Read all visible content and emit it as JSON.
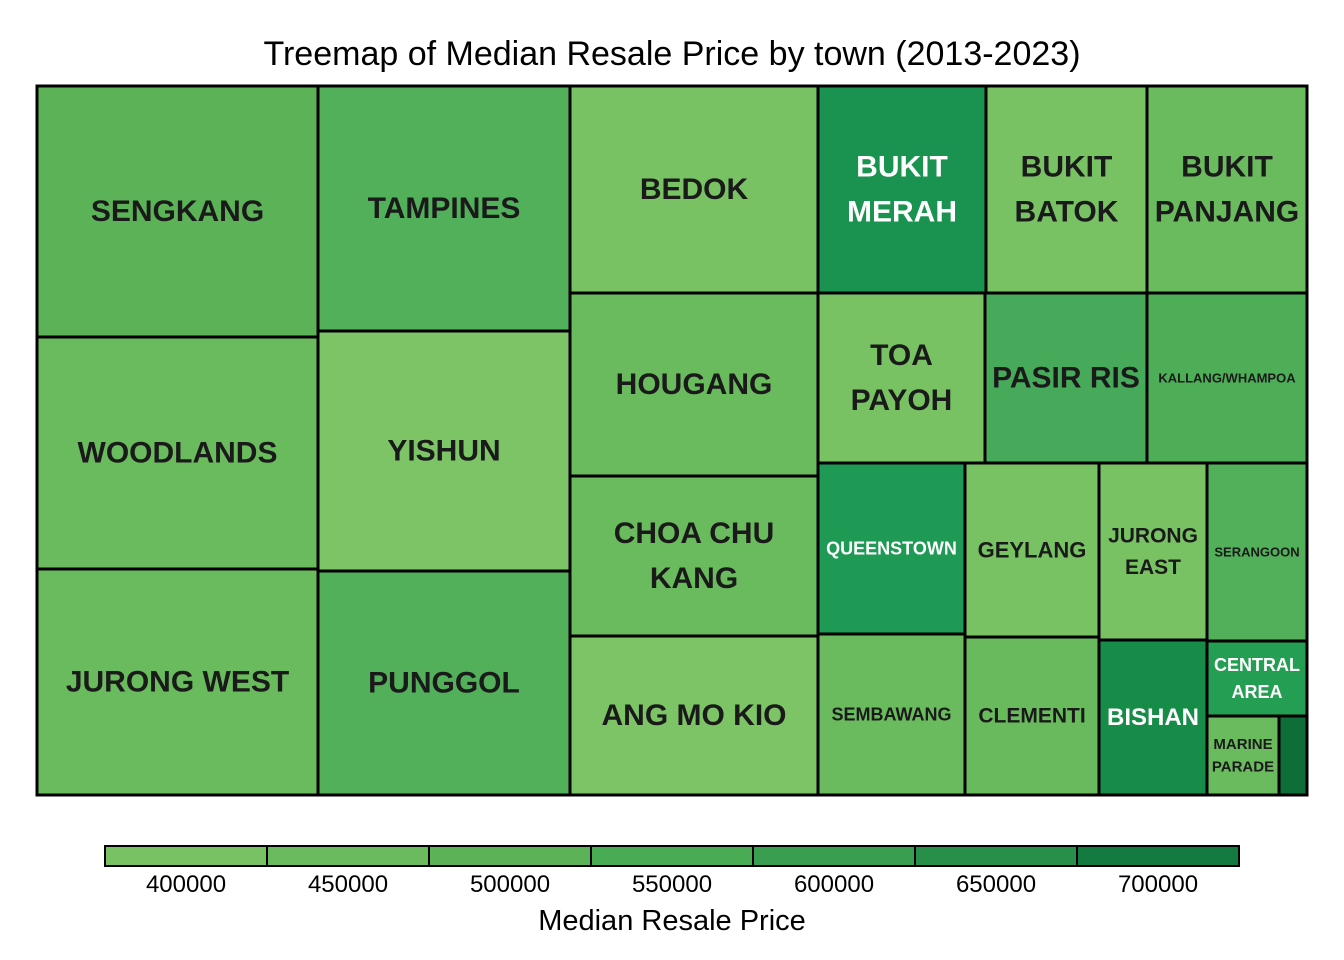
{
  "chart_data": {
    "type": "treemap",
    "title": "Treemap of Median Resale Price by town  (2013-2023)",
    "legend": {
      "title": "Median Resale Price",
      "position": "bottom",
      "ticks": [
        "400000",
        "450000",
        "500000",
        "550000",
        "600000",
        "650000",
        "700000"
      ],
      "colors": [
        "#78c264",
        "#6abb5d",
        "#5cb357",
        "#4aab55",
        "#3a9e50",
        "#278f4a",
        "#137a40"
      ]
    },
    "cells": [
      {
        "label": "SENGKANG",
        "lines": [
          "SENGKANG"
        ],
        "value_rank": 1,
        "median_price": 470000,
        "fill": "#5cb357",
        "text_color": "#1a1a1a"
      },
      {
        "label": "WOODLANDS",
        "lines": [
          "WOODLANDS"
        ],
        "value_rank": 2,
        "median_price": 420000,
        "fill": "#6abb5d",
        "text_color": "#1a1a1a"
      },
      {
        "label": "JURONG WEST",
        "lines": [
          "JURONG WEST"
        ],
        "value_rank": 3,
        "median_price": 420000,
        "fill": "#6abb5d",
        "text_color": "#1a1a1a"
      },
      {
        "label": "TAMPINES",
        "lines": [
          "TAMPINES"
        ],
        "value_rank": 4,
        "median_price": 480000,
        "fill": "#52af5a",
        "text_color": "#1a1a1a"
      },
      {
        "label": "YISHUN",
        "lines": [
          "YISHUN"
        ],
        "value_rank": 5,
        "median_price": 390000,
        "fill": "#7cc466",
        "text_color": "#1a1a1a"
      },
      {
        "label": "PUNGGOL",
        "lines": [
          "PUNGGOL"
        ],
        "value_rank": 6,
        "median_price": 480000,
        "fill": "#52af5a",
        "text_color": "#1a1a1a"
      },
      {
        "label": "BEDOK",
        "lines": [
          "BEDOK"
        ],
        "value_rank": 7,
        "median_price": 400000,
        "fill": "#78c264",
        "text_color": "#1a1a1a"
      },
      {
        "label": "HOUGANG",
        "lines": [
          "HOUGANG"
        ],
        "value_rank": 8,
        "median_price": 430000,
        "fill": "#6abb5d",
        "text_color": "#1a1a1a"
      },
      {
        "label": "CHOA CHU KANG",
        "lines": [
          "CHOA CHU",
          "KANG"
        ],
        "value_rank": 9,
        "median_price": 430000,
        "fill": "#6abb5d",
        "text_color": "#1a1a1a"
      },
      {
        "label": "ANG MO KIO",
        "lines": [
          "ANG MO KIO"
        ],
        "value_rank": 10,
        "median_price": 400000,
        "fill": "#7cc466",
        "text_color": "#1a1a1a"
      },
      {
        "label": "BUKIT MERAH",
        "lines": [
          "BUKIT",
          "MERAH"
        ],
        "value_rank": 11,
        "median_price": 610000,
        "fill": "#1a9350",
        "text_color": "#ffffff"
      },
      {
        "label": "BUKIT BATOK",
        "lines": [
          "BUKIT",
          "BATOK"
        ],
        "value_rank": 12,
        "median_price": 400000,
        "fill": "#78c264",
        "text_color": "#1a1a1a"
      },
      {
        "label": "BUKIT PANJANG",
        "lines": [
          "BUKIT",
          "PANJANG"
        ],
        "value_rank": 13,
        "median_price": 430000,
        "fill": "#6abb5d",
        "text_color": "#1a1a1a"
      },
      {
        "label": "TOA PAYOH",
        "lines": [
          "TOA",
          "PAYOH"
        ],
        "value_rank": 14,
        "median_price": 400000,
        "fill": "#78c264",
        "text_color": "#1a1a1a"
      },
      {
        "label": "PASIR RIS",
        "lines": [
          "PASIR RIS"
        ],
        "value_rank": 15,
        "median_price": 500000,
        "fill": "#46aa5a",
        "text_color": "#1a1a1a"
      },
      {
        "label": "KALLANG/WHAMPOA",
        "lines": [
          "KALLANG/WHAMPOA"
        ],
        "value_rank": 16,
        "median_price": 490000,
        "fill": "#4eae58",
        "text_color": "#1a1a1a"
      },
      {
        "label": "QUEENSTOWN",
        "lines": [
          "QUEENSTOWN"
        ],
        "value_rank": 17,
        "median_price": 600000,
        "fill": "#1e9a54",
        "text_color": "#ffffff"
      },
      {
        "label": "GEYLANG",
        "lines": [
          "GEYLANG"
        ],
        "value_rank": 18,
        "median_price": 400000,
        "fill": "#78c264",
        "text_color": "#1a1a1a"
      },
      {
        "label": "JURONG EAST",
        "lines": [
          "JURONG",
          "EAST"
        ],
        "value_rank": 19,
        "median_price": 400000,
        "fill": "#78c264",
        "text_color": "#1a1a1a"
      },
      {
        "label": "SERANGOON",
        "lines": [
          "SERANGOON"
        ],
        "value_rank": 20,
        "median_price": 480000,
        "fill": "#52af5a",
        "text_color": "#1a1a1a"
      },
      {
        "label": "SEMBAWANG",
        "lines": [
          "SEMBAWANG"
        ],
        "value_rank": 21,
        "median_price": 430000,
        "fill": "#6abb5d",
        "text_color": "#1a1a1a"
      },
      {
        "label": "CLEMENTI",
        "lines": [
          "CLEMENTI"
        ],
        "value_rank": 22,
        "median_price": 430000,
        "fill": "#68ba5d",
        "text_color": "#1a1a1a"
      },
      {
        "label": "BISHAN",
        "lines": [
          "BISHAN"
        ],
        "value_rank": 23,
        "median_price": 640000,
        "fill": "#168c48",
        "text_color": "#ffffff"
      },
      {
        "label": "CENTRAL AREA",
        "lines": [
          "CENTRAL",
          "AREA"
        ],
        "value_rank": 24,
        "median_price": 580000,
        "fill": "#249e52",
        "text_color": "#ffffff"
      },
      {
        "label": "MARINE PARADE",
        "lines": [
          "MARINE",
          "PARADE"
        ],
        "value_rank": 25,
        "median_price": 420000,
        "fill": "#6abb5d",
        "text_color": "#1a1a1a"
      },
      {
        "label": "",
        "lines": [],
        "value_rank": 26,
        "median_price": 720000,
        "fill": "#0d6e38",
        "text_color": "#ffffff"
      }
    ]
  }
}
